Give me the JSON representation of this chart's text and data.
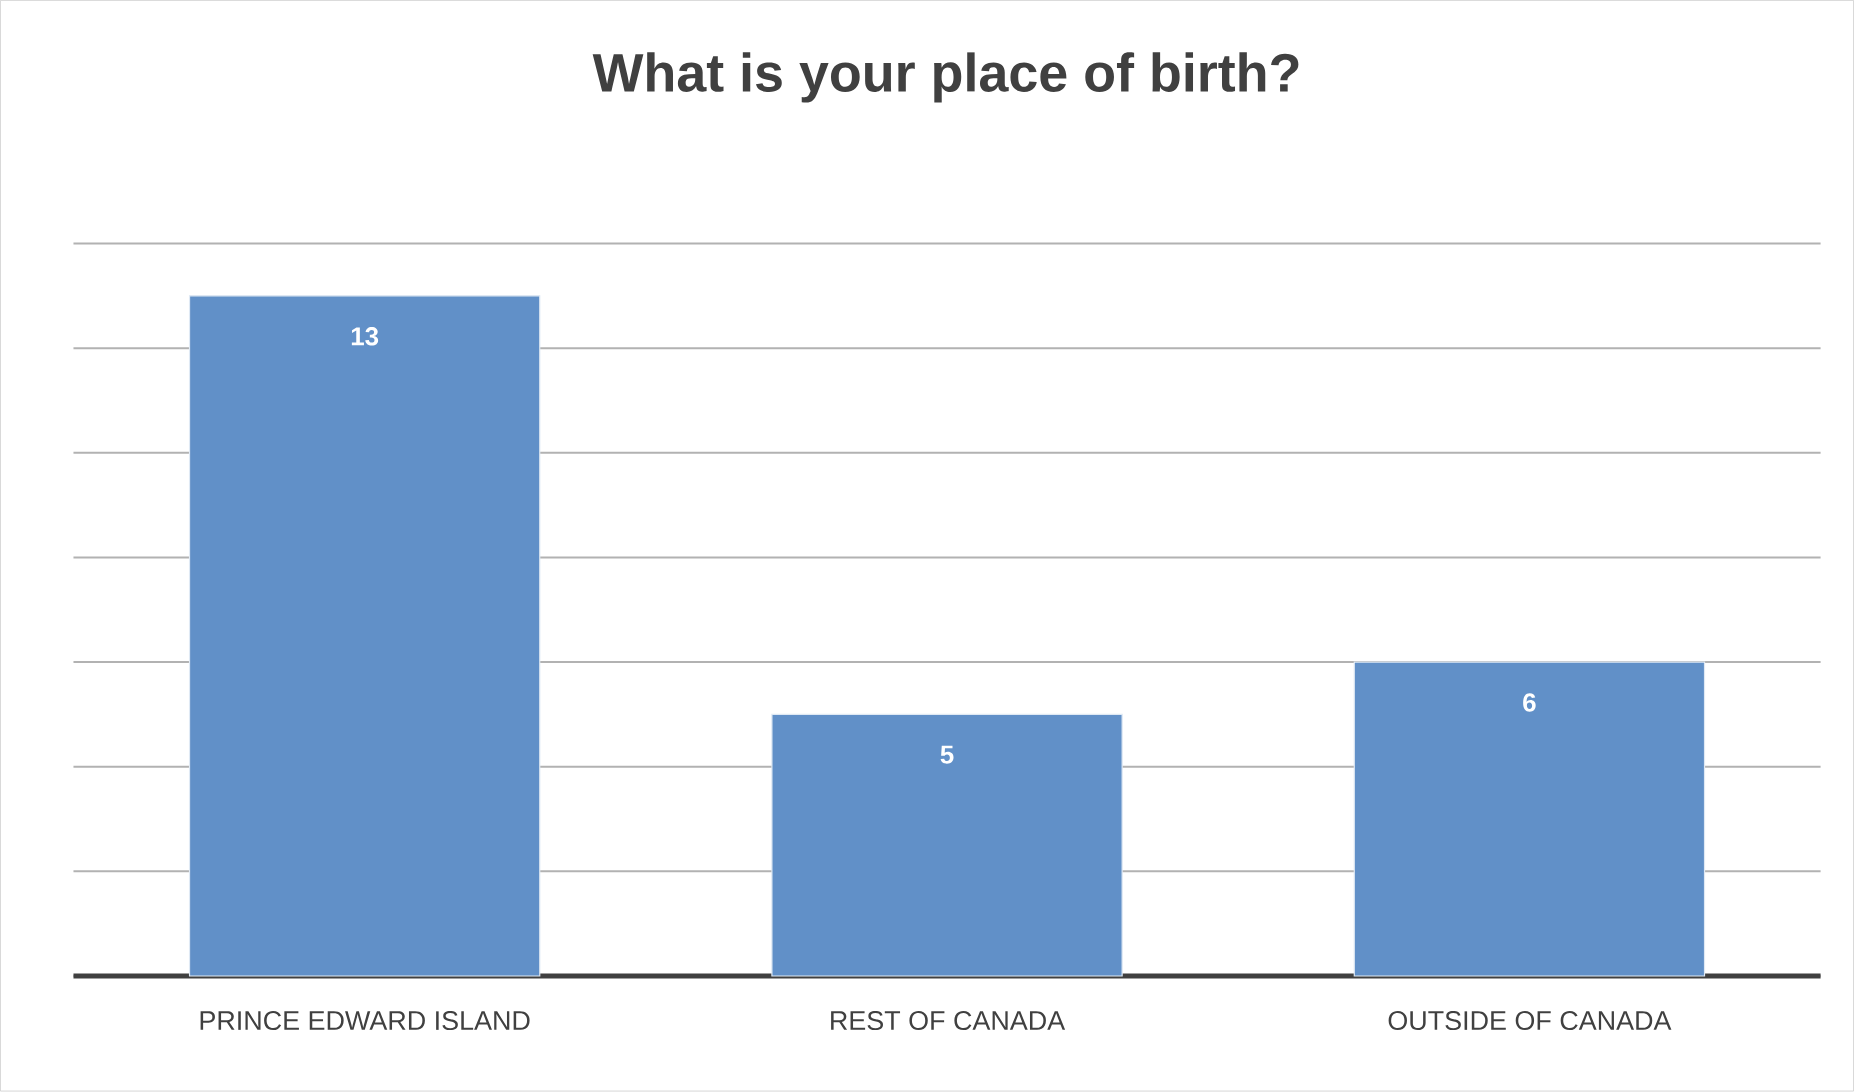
{
  "chart_data": {
    "type": "bar",
    "title": "What is your place of birth?",
    "categories": [
      "PRINCE EDWARD ISLAND",
      "REST OF CANADA",
      "OUTSIDE OF CANADA"
    ],
    "values": [
      13,
      5,
      6
    ],
    "color": "#6190c8",
    "ylim": [
      0,
      14
    ],
    "yticks": [
      {
        "value": 0,
        "label": null
      },
      {
        "value": 2,
        "label": null
      },
      {
        "value": 4,
        "label": null
      },
      {
        "value": 6,
        "label": null
      },
      {
        "value": 8,
        "label": null
      },
      {
        "value": 10,
        "label": null
      },
      {
        "value": 12,
        "label": null
      },
      {
        "value": 14,
        "label": null
      }
    ],
    "tick_labels": "x",
    "grid": "y",
    "data_labels": true
  }
}
